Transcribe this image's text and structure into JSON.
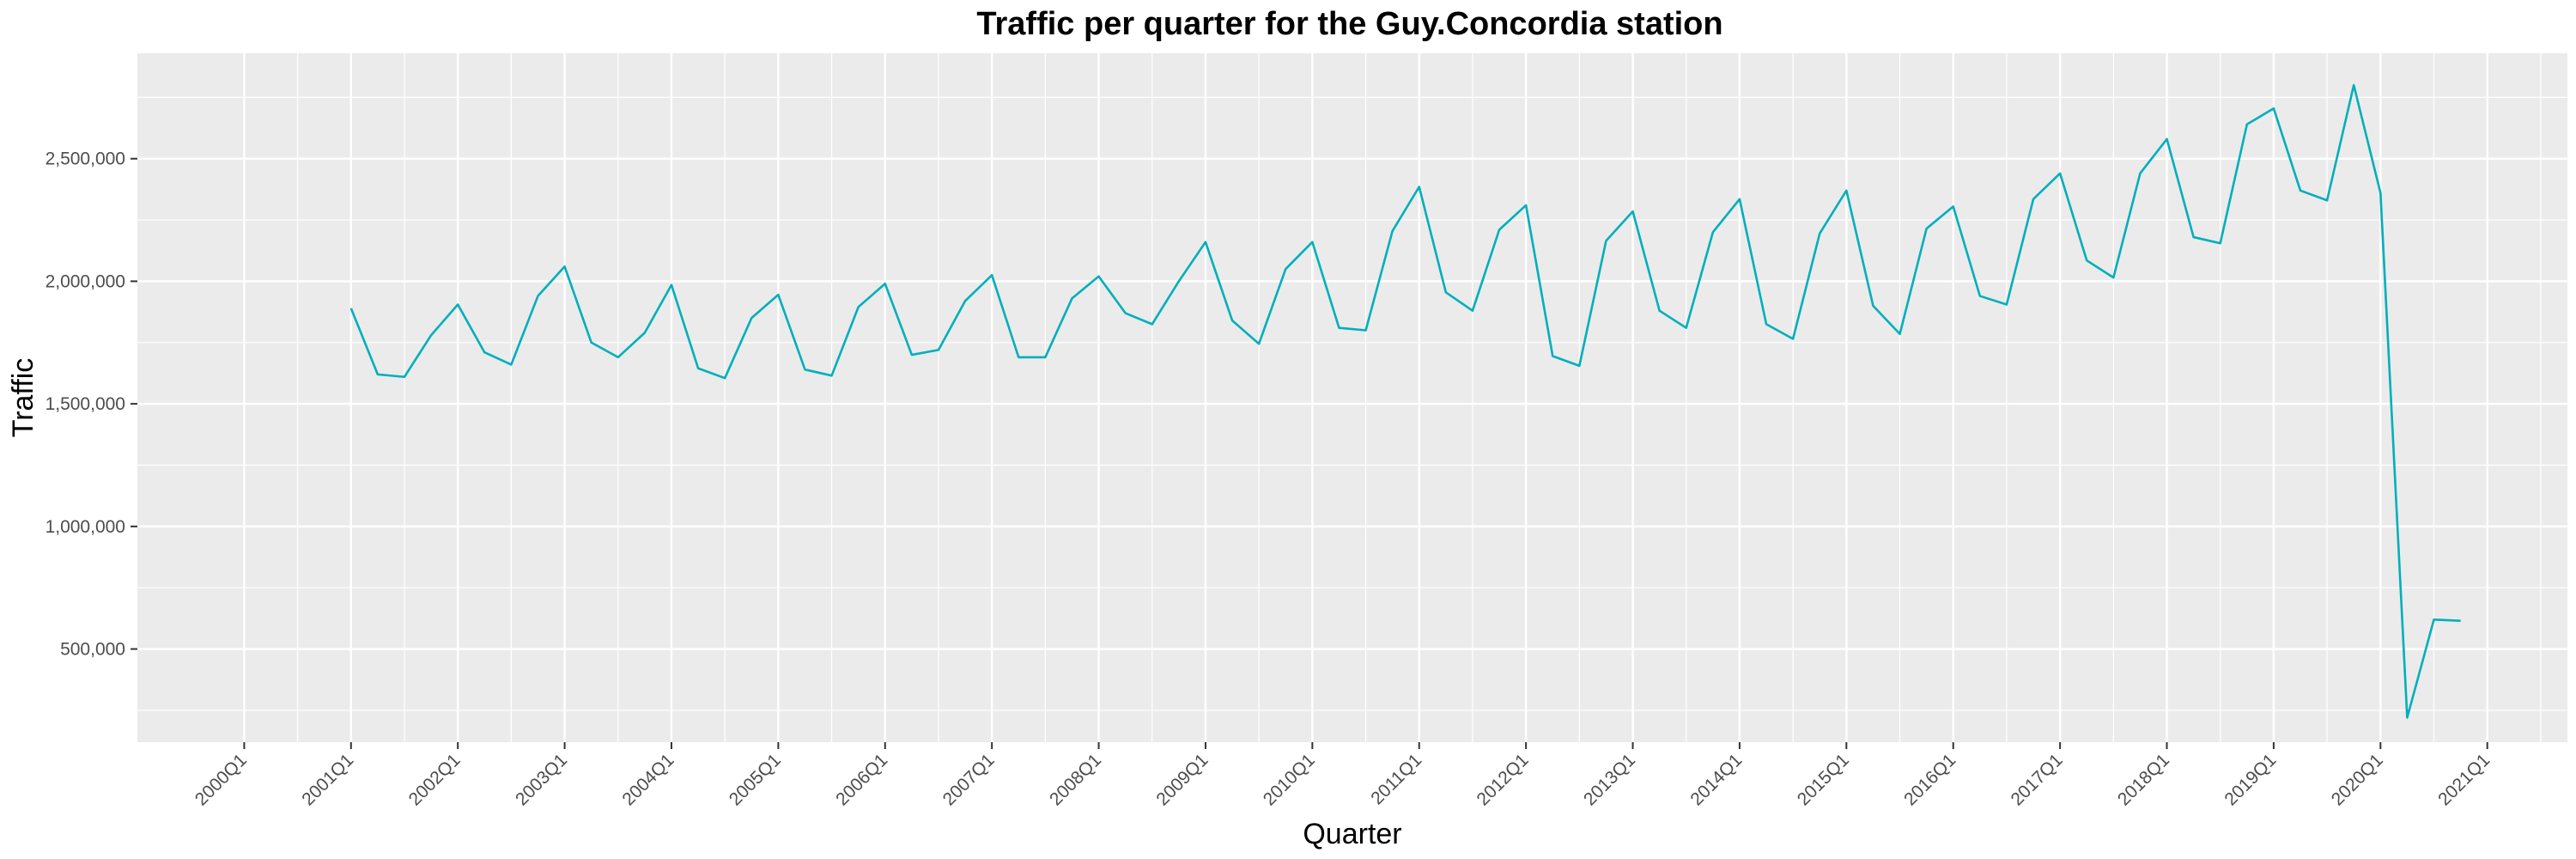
{
  "chart_data": {
    "type": "line",
    "title": "Traffic per quarter for the Guy.Concordia station",
    "xlabel": "Quarter",
    "ylabel": "Traffic",
    "x_ticks": [
      "2000Q1",
      "2001Q1",
      "2002Q1",
      "2003Q1",
      "2004Q1",
      "2005Q1",
      "2006Q1",
      "2007Q1",
      "2008Q1",
      "2009Q1",
      "2010Q1",
      "2011Q1",
      "2012Q1",
      "2013Q1",
      "2014Q1",
      "2015Q1",
      "2016Q1",
      "2017Q1",
      "2018Q1",
      "2019Q1",
      "2020Q1",
      "2021Q1"
    ],
    "y_ticks": [
      500000,
      1000000,
      1500000,
      2000000,
      2500000
    ],
    "y_tick_labels": [
      "500,000",
      "1,000,000",
      "1,500,000",
      "2,000,000",
      "2,500,000"
    ],
    "xlim": [
      "2000Q1",
      "2021Q1"
    ],
    "ylim": [
      120000,
      2930000
    ],
    "grid": true,
    "line_color": "#00AFBB",
    "series": [
      {
        "x": [
          "2001Q1",
          "2001Q2",
          "2001Q3",
          "2001Q4",
          "2002Q1",
          "2002Q2",
          "2002Q3",
          "2002Q4",
          "2003Q1",
          "2003Q2",
          "2003Q3",
          "2003Q4",
          "2004Q1",
          "2004Q2",
          "2004Q3",
          "2004Q4",
          "2005Q1",
          "2005Q2",
          "2005Q3",
          "2005Q4",
          "2006Q1",
          "2006Q2",
          "2006Q3",
          "2006Q4",
          "2007Q1",
          "2007Q2",
          "2007Q3",
          "2007Q4",
          "2008Q1",
          "2008Q2",
          "2008Q3",
          "2008Q4",
          "2009Q1",
          "2009Q2",
          "2009Q3",
          "2009Q4",
          "2010Q1",
          "2010Q2",
          "2010Q3",
          "2010Q4",
          "2011Q1",
          "2011Q2",
          "2011Q3",
          "2011Q4",
          "2012Q1",
          "2012Q2",
          "2012Q3",
          "2012Q4",
          "2013Q1",
          "2013Q2",
          "2013Q3",
          "2013Q4",
          "2014Q1",
          "2014Q2",
          "2014Q3",
          "2014Q4",
          "2015Q1",
          "2015Q2",
          "2015Q3",
          "2015Q4",
          "2016Q1",
          "2016Q2",
          "2016Q3",
          "2016Q4",
          "2017Q1",
          "2017Q2",
          "2017Q3",
          "2017Q4",
          "2018Q1",
          "2018Q2",
          "2018Q3",
          "2018Q4",
          "2019Q1",
          "2019Q2",
          "2019Q3",
          "2019Q4",
          "2020Q1",
          "2020Q2",
          "2020Q3",
          "2020Q4"
        ],
        "values": [
          1890000,
          1620000,
          1610000,
          1780000,
          1905000,
          1710000,
          1660000,
          1940000,
          2060000,
          1750000,
          1690000,
          1790000,
          1985000,
          1645000,
          1605000,
          1850000,
          1945000,
          1640000,
          1615000,
          1895000,
          1990000,
          1700000,
          1720000,
          1920000,
          2025000,
          1690000,
          1690000,
          1930000,
          2020000,
          1870000,
          1825000,
          2000000,
          2160000,
          1840000,
          1745000,
          2050000,
          2160000,
          1810000,
          1800000,
          2205000,
          2385000,
          1955000,
          1880000,
          2210000,
          2310000,
          1695000,
          1655000,
          2165000,
          2285000,
          1880000,
          1810000,
          2200000,
          2335000,
          1825000,
          1765000,
          2195000,
          2370000,
          1900000,
          1785000,
          2215000,
          2305000,
          1940000,
          1905000,
          2335000,
          2440000,
          2085000,
          2015000,
          2440000,
          2580000,
          2180000,
          2155000,
          2640000,
          2705000,
          2370000,
          2330000,
          2800000,
          2360000,
          220000,
          620000,
          615000
        ]
      }
    ]
  }
}
